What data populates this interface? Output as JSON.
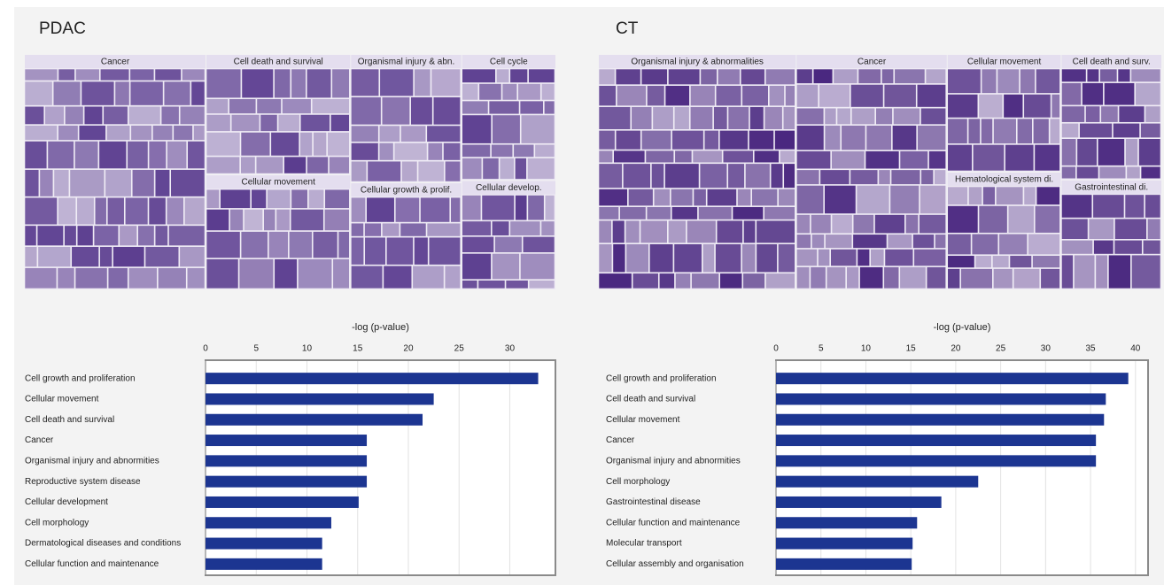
{
  "chart_data": [
    {
      "type": "treemap",
      "title": "PDAC",
      "color": "#5b3d8f",
      "categories": [
        "Cancer",
        "Cell death and survival",
        "Cellular movement",
        "Organismal injury & abn.",
        "Cellular growth & prolif.",
        "Cell cycle",
        "Cellular develop."
      ],
      "values": [
        54,
        22,
        21,
        18,
        15,
        15,
        13
      ]
    },
    {
      "type": "barh",
      "xlabel": "-log (p-value)",
      "color": "#1c3591",
      "categories": [
        "Cell growth and proliferation",
        "Cellular movement",
        "Cell death and survival",
        "Cancer",
        "Organismal injury and abnormities",
        "Reproductive system disease",
        "Cellular development",
        "Cell morphology",
        "Dermatological diseases and conditions",
        "Cellular function and maintenance"
      ],
      "values": [
        32.8,
        22.5,
        21.4,
        15.9,
        15.9,
        15.9,
        15.1,
        12.4,
        11.5,
        11.5
      ],
      "xlim": [
        0,
        34.5
      ],
      "xticks": [
        0,
        5,
        10,
        15,
        20,
        25,
        30
      ],
      "grid": true
    },
    {
      "type": "treemap",
      "title": "CT",
      "color": "#4a2880",
      "categories": [
        "Organismal injury & abnormalities",
        "Cancer",
        "Cellular movement",
        "Hematological system di.",
        "Cell death and surv.",
        "Gastrointestinal di."
      ],
      "values": [
        59,
        45,
        17,
        17,
        16,
        14
      ]
    },
    {
      "type": "barh",
      "xlabel": "-log (p-value)",
      "color": "#1c3591",
      "categories": [
        "Cell growth and proliferation",
        "Cell death and survival",
        "Cellular movement",
        "Cancer",
        "Organismal injury and abnormities",
        "Cell morphology",
        "Gastrointestinal disease",
        "Cellular function and maintenance",
        "Molecular transport",
        "Cellular assembly and organisation"
      ],
      "values": [
        39.2,
        36.7,
        36.5,
        35.6,
        35.6,
        22.5,
        18.4,
        15.7,
        15.2,
        15.1
      ],
      "xlim": [
        0,
        41.4
      ],
      "xticks": [
        0,
        5,
        10,
        15,
        20,
        25,
        30,
        35,
        40
      ],
      "grid": true
    }
  ]
}
